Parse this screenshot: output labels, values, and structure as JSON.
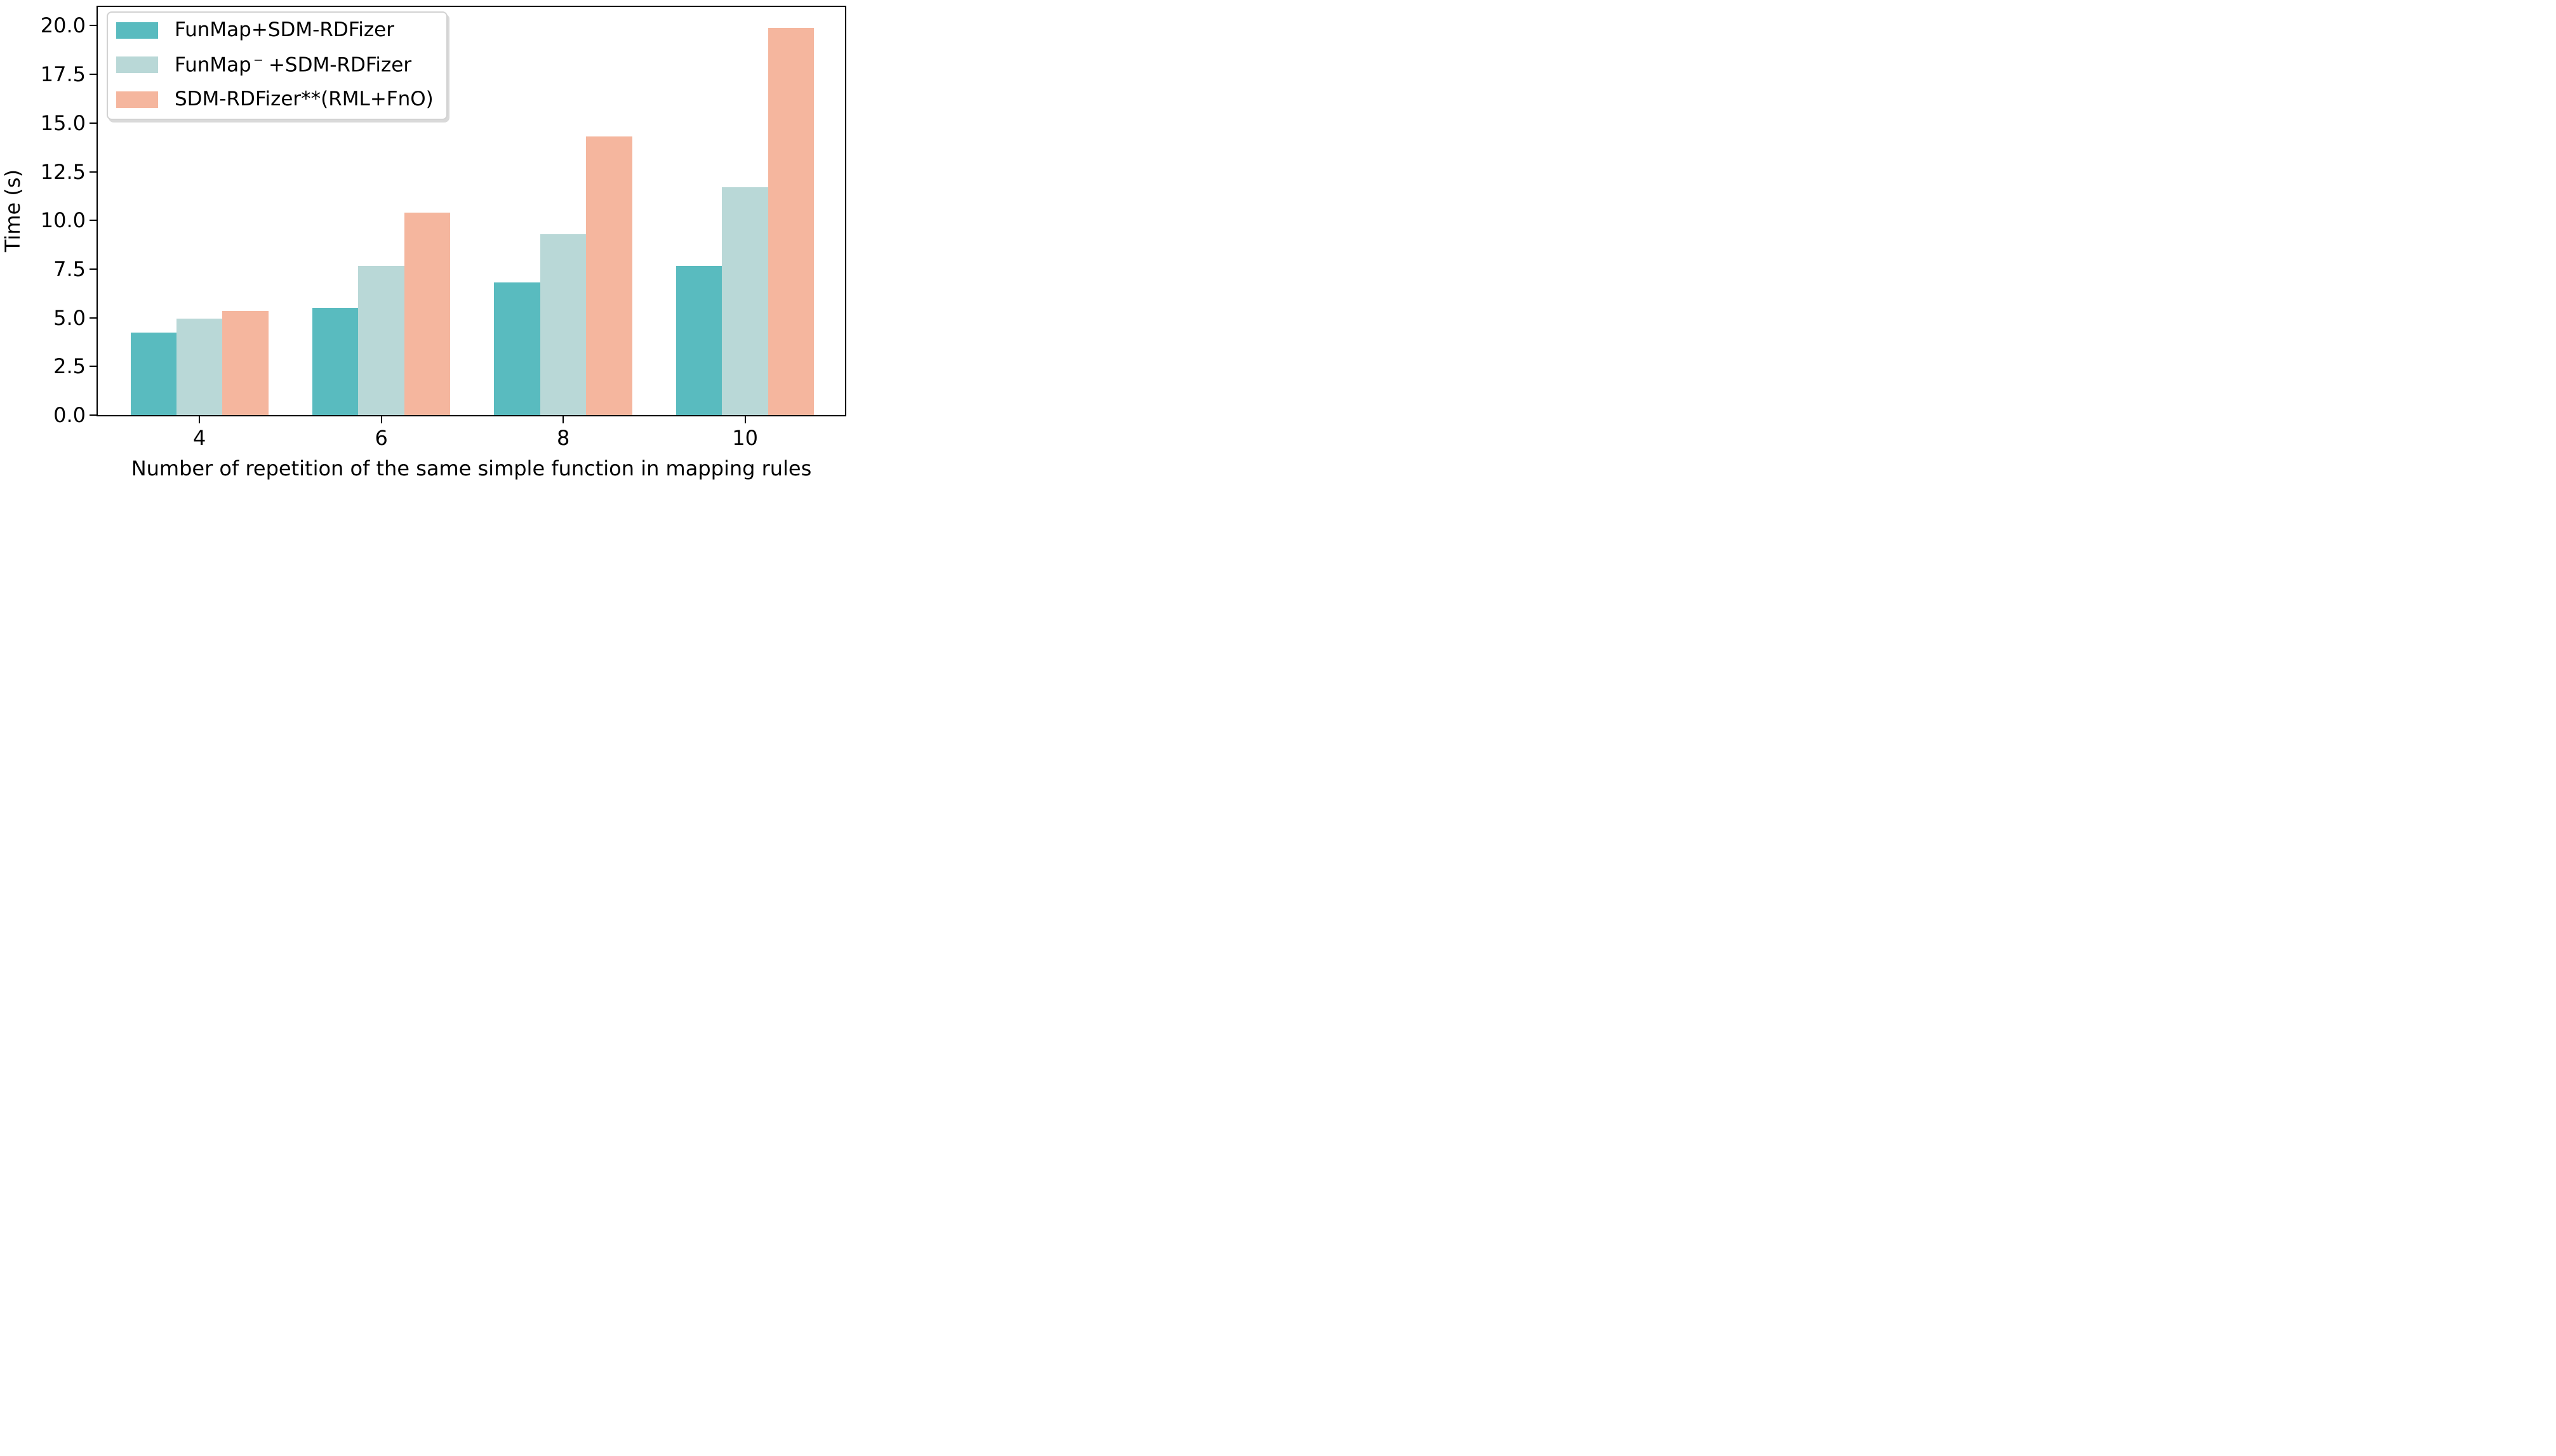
{
  "figure": {
    "background": "#ffffff",
    "text_color": "#000000"
  },
  "chart_data": {
    "type": "bar",
    "title": "",
    "xlabel": "Number of repetition of the same simple function in mapping rules",
    "ylabel": "Time (s)",
    "categories": [
      "4",
      "6",
      "8",
      "10"
    ],
    "series": [
      {
        "name": "FunMap+SDM-RDFizer",
        "label_parts": {
          "prefix": "FunMap",
          "sup": "",
          "suffix": "+SDM-RDFizer"
        },
        "color": "#59bbbf",
        "values": [
          4.25,
          5.5,
          6.8,
          7.65
        ]
      },
      {
        "name": "FunMap−+SDM-RDFizer",
        "label_parts": {
          "prefix": "FunMap",
          "sup": "−",
          "suffix": "+SDM-RDFizer"
        },
        "color": "#b9d8d7",
        "values": [
          4.95,
          7.65,
          9.3,
          11.7
        ]
      },
      {
        "name": "SDM-RDFizer**(RML+FnO)",
        "label_parts": {
          "prefix": "SDM-RDFizer**(RML+FnO)",
          "sup": "",
          "suffix": ""
        },
        "color": "#f5b69e",
        "values": [
          5.35,
          10.4,
          14.3,
          19.9
        ]
      }
    ],
    "yticks": [
      0,
      2.5,
      5,
      7.5,
      10,
      12.5,
      15,
      17.5,
      20
    ],
    "ytick_labels": [
      "0.0",
      "2.5",
      "5.0",
      "7.5",
      "10.0",
      "12.5",
      "15.0",
      "17.5",
      "20.0"
    ],
    "ylim": [
      0,
      20.96
    ],
    "grid": false,
    "legend_position": "upper-left",
    "axis_color": "#000000"
  }
}
